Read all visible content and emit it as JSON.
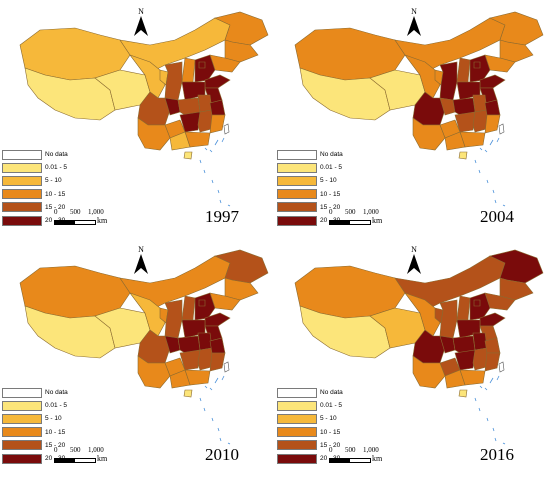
{
  "panels": [
    {
      "year": "1997"
    },
    {
      "year": "2004"
    },
    {
      "year": "2010"
    },
    {
      "year": "2016"
    }
  ],
  "north_label": "N",
  "legend": [
    {
      "label": "No data",
      "color": "#ffffff"
    },
    {
      "label": "0.01 - 5",
      "color": "#fce57a"
    },
    {
      "label": "5 - 10",
      "color": "#f6b83a"
    },
    {
      "label": "10 - 15",
      "color": "#e8891b"
    },
    {
      "label": "15 - 20",
      "color": "#b4521a"
    },
    {
      "label": "20 - 30",
      "color": "#7a0b0b"
    }
  ],
  "scale": {
    "ticks": [
      "0",
      "500",
      "1,000"
    ],
    "unit": "km"
  },
  "palette": {
    "c1": "#fce57a",
    "c2": "#f6b83a",
    "c3": "#e8891b",
    "c4": "#b4521a",
    "c5": "#7a0b0b",
    "outline": "#8a6a30",
    "islands": "#4a90d9"
  }
}
